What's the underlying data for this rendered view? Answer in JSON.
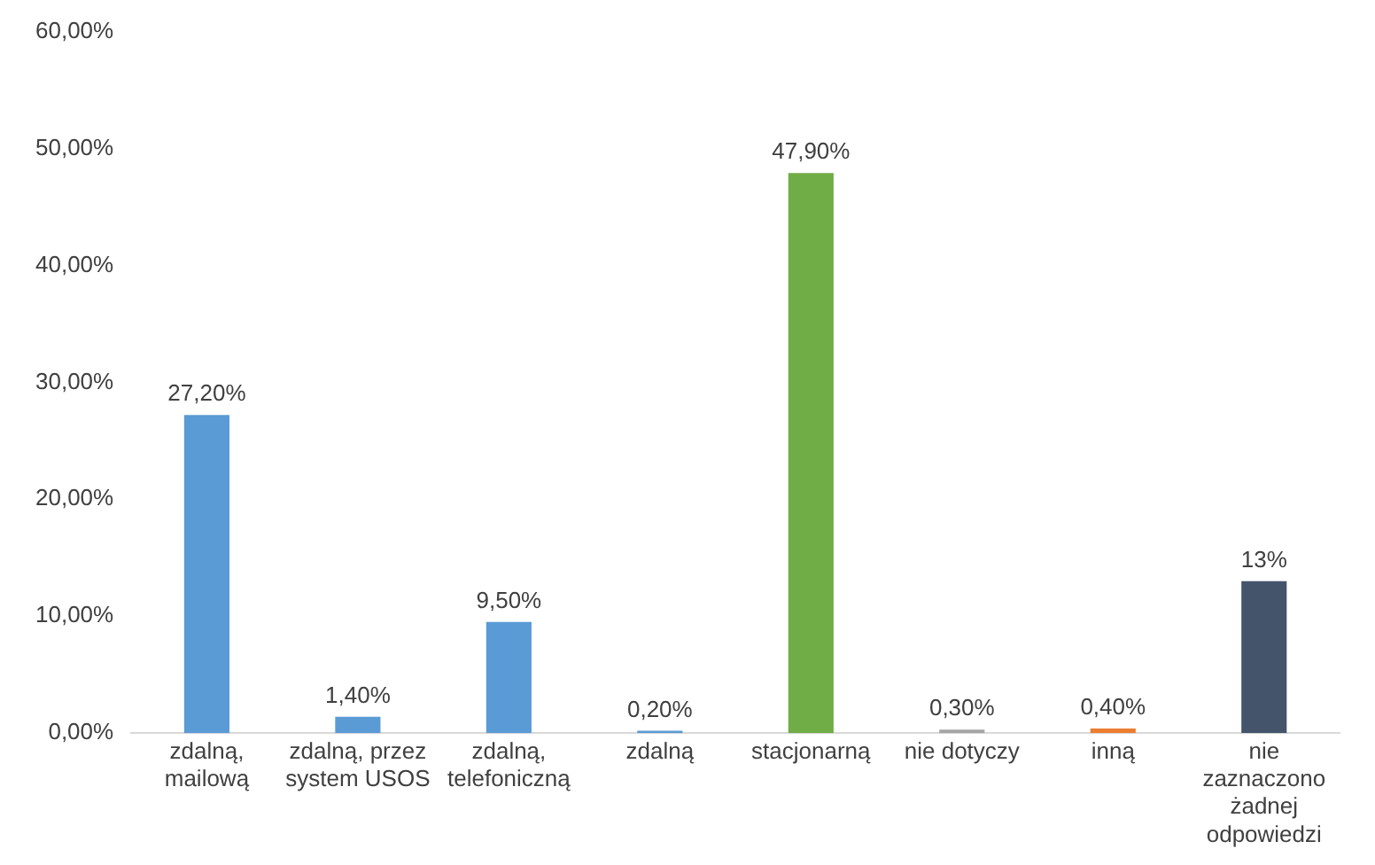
{
  "chart_data": {
    "type": "bar",
    "categories": [
      "zdalną, mailową",
      "zdalną, przez system USOS",
      "zdalną, telefoniczną",
      "zdalną",
      "stacjonarną",
      "nie dotyczy",
      "inną",
      "nie zaznaczono żadnej odpowiedzi"
    ],
    "values": [
      27.2,
      1.4,
      9.5,
      0.2,
      47.9,
      0.3,
      0.4,
      13
    ],
    "colors": [
      "#5b9bd5",
      "#5b9bd5",
      "#5b9bd5",
      "#5b9bd5",
      "#70ad47",
      "#a5a5a5",
      "#ed7d31",
      "#44546a"
    ],
    "value_labels": [
      "27,20%",
      "1,40%",
      "9,50%",
      "0,20%",
      "47,90%",
      "0,30%",
      "0,40%",
      "13%"
    ],
    "ylim": [
      0,
      60
    ],
    "yticks": [
      {
        "value": 0,
        "label": "0,00%"
      },
      {
        "value": 10,
        "label": "10,00%"
      },
      {
        "value": 20,
        "label": "20,00%"
      },
      {
        "value": 30,
        "label": "30,00%"
      },
      {
        "value": 40,
        "label": "40,00%"
      },
      {
        "value": 50,
        "label": "50,00%"
      },
      {
        "value": 60,
        "label": "60,00%"
      }
    ],
    "grid": false,
    "legend": false
  }
}
